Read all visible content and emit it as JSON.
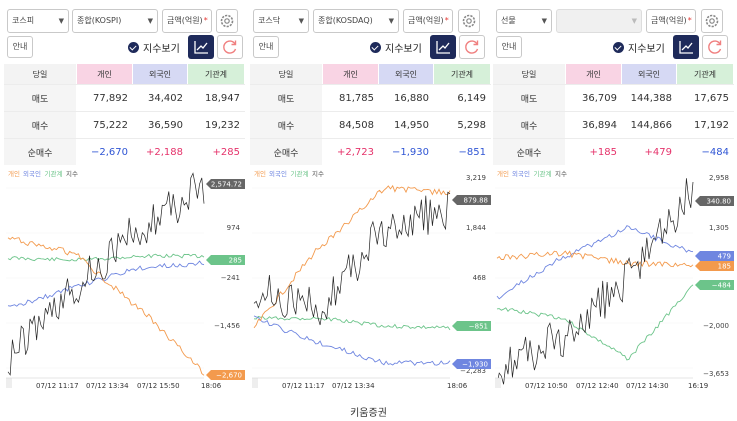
{
  "caption": "키움증권",
  "colors": {
    "individual": "#f39a4d",
    "foreign": "#6f86e0",
    "institution": "#6cc48a",
    "index": "#222222",
    "accent": "#1e2a5a"
  },
  "panels": [
    {
      "market": "코스피",
      "category": "종합(KOSPI)",
      "unit": "금액(억원)",
      "unit_mark": "*",
      "category_disabled": false,
      "guide_label": "안내",
      "index_toggle": "지수보기",
      "table": {
        "headers": [
          "당일",
          "개인",
          "외국인",
          "기관계"
        ],
        "rows": [
          {
            "label": "매도",
            "values": [
              "77,892",
              "34,402",
              "18,947"
            ]
          },
          {
            "label": "매수",
            "values": [
              "75,222",
              "36,590",
              "19,232"
            ]
          },
          {
            "label": "순매수",
            "values": [
              "−2,670",
              "+2,188",
              "+285"
            ]
          }
        ]
      },
      "chart": {
        "legend": [
          "개인",
          "외국인",
          "기관계",
          "지수"
        ],
        "right_labels": [
          "974",
          "−241",
          "−1,456"
        ],
        "badges": [
          {
            "text": "2,574.72",
            "color": "#666666"
          },
          {
            "text": "285",
            "color": "#6cc48a"
          },
          {
            "text": "−2,670",
            "color": "#f39a4d"
          }
        ],
        "x_labels": [
          "07/12 11:17",
          "07/12 13:34",
          "07/12 15:50",
          "18:06"
        ]
      },
      "chart_data": {
        "type": "line",
        "x_ticks": [
          "07/12 11:17",
          "07/12 13:34",
          "07/12 15:50",
          "18:06"
        ],
        "series": [
          {
            "name": "개인",
            "last": -2670
          },
          {
            "name": "외국인",
            "last": 2188
          },
          {
            "name": "기관계",
            "last": 285
          },
          {
            "name": "지수",
            "last": 2574.72
          }
        ]
      }
    },
    {
      "market": "코스닥",
      "category": "종합(KOSDAQ)",
      "unit": "금액(억원)",
      "unit_mark": "*",
      "category_disabled": false,
      "guide_label": "안내",
      "index_toggle": "지수보기",
      "table": {
        "headers": [
          "당일",
          "개인",
          "외국인",
          "기관계"
        ],
        "rows": [
          {
            "label": "매도",
            "values": [
              "81,785",
              "16,880",
              "6,149"
            ]
          },
          {
            "label": "매수",
            "values": [
              "84,508",
              "14,950",
              "5,298"
            ]
          },
          {
            "label": "순매수",
            "values": [
              "+2,723",
              "−1,930",
              "−851"
            ]
          }
        ]
      },
      "chart": {
        "legend": [
          "개인",
          "외국인",
          "기관계",
          "지수"
        ],
        "right_labels": [
          "3,219",
          "1,844",
          "468",
          "−2,283"
        ],
        "badges": [
          {
            "text": "879.88",
            "color": "#666666"
          },
          {
            "text": "−851",
            "color": "#6cc48a"
          },
          {
            "text": "−1,930",
            "color": "#6f86e0"
          }
        ],
        "x_labels": [
          "07/12 11:17",
          "07/12 13:34",
          "18:06"
        ]
      },
      "chart_data": {
        "type": "line",
        "x_ticks": [
          "07/12 11:17",
          "07/12 13:34",
          "18:06"
        ],
        "series": [
          {
            "name": "개인",
            "last": 2723
          },
          {
            "name": "외국인",
            "last": -1930
          },
          {
            "name": "기관계",
            "last": -851
          },
          {
            "name": "지수",
            "last": 879.88
          }
        ]
      }
    },
    {
      "market": "선물",
      "category": "",
      "unit": "금액(억원)",
      "unit_mark": "*",
      "category_disabled": true,
      "guide_label": "안내",
      "index_toggle": "지수보기",
      "table": {
        "headers": [
          "당일",
          "개인",
          "외국인",
          "기관계"
        ],
        "rows": [
          {
            "label": "매도",
            "values": [
              "36,709",
              "144,388",
              "17,675"
            ]
          },
          {
            "label": "매수",
            "values": [
              "36,894",
              "144,866",
              "17,192"
            ]
          },
          {
            "label": "순매수",
            "values": [
              "+185",
              "+479",
              "−484"
            ]
          }
        ]
      },
      "chart": {
        "legend": [
          "개인",
          "외국인",
          "기관계",
          "지수"
        ],
        "right_labels": [
          "2,958",
          "1,305",
          "−2,000",
          "−3,653"
        ],
        "badges": [
          {
            "text": "340.80",
            "color": "#666666"
          },
          {
            "text": "479",
            "color": "#6f86e0"
          },
          {
            "text": "185",
            "color": "#f39a4d"
          },
          {
            "text": "−484",
            "color": "#6cc48a"
          }
        ],
        "x_labels": [
          "07/12 10:50",
          "07/12 12:40",
          "07/12 14:30",
          "16:19"
        ]
      },
      "chart_data": {
        "type": "line",
        "x_ticks": [
          "07/12 10:50",
          "07/12 12:40",
          "07/12 14:30",
          "16:19"
        ],
        "series": [
          {
            "name": "개인",
            "last": 185
          },
          {
            "name": "외국인",
            "last": 479
          },
          {
            "name": "기관계",
            "last": -484
          },
          {
            "name": "지수",
            "last": 340.8
          }
        ]
      }
    }
  ]
}
